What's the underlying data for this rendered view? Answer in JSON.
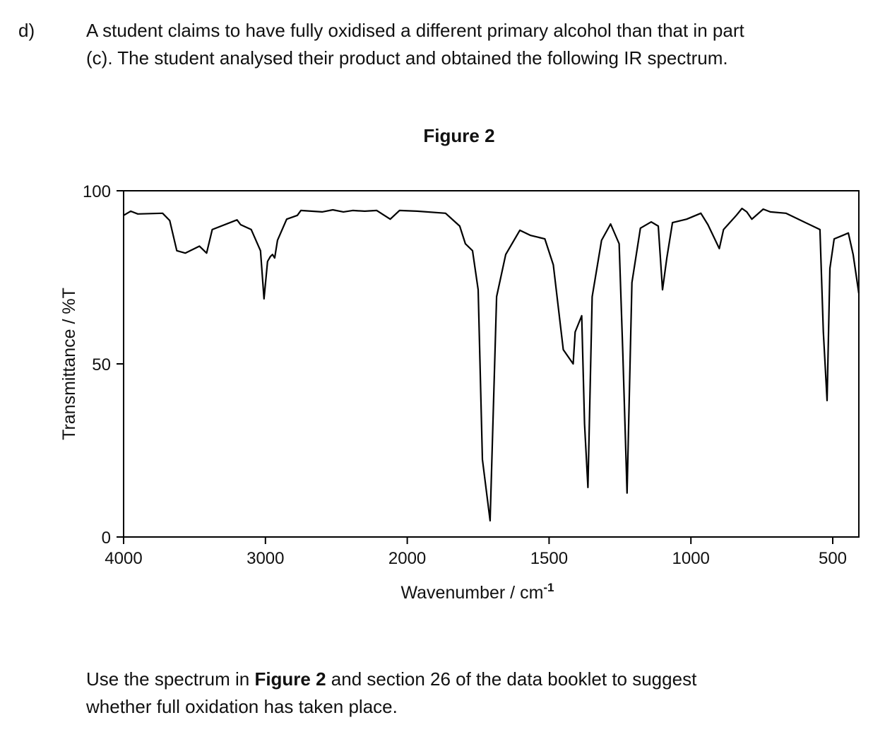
{
  "question": {
    "number": "d)",
    "lines": [
      "A student claims to have fully oxidised a different primary alcohol than that in part",
      "(c). The student analysed their product and obtained the following IR spectrum."
    ],
    "prompt_parts": [
      "Use the spectrum in ",
      "Figure 2",
      " and section 26 of the data booklet to suggest"
    ],
    "prompt_line2": "whether full oxidation has taken place."
  },
  "chart_data": {
    "type": "line",
    "title": "Figure 2",
    "x_label": "Wavenumber / cm",
    "x_label_superscript": "-1",
    "y_label": "Transmittance / %T",
    "xlim": [
      4000,
      408
    ],
    "xticks": [
      4000,
      3000,
      2000,
      1500,
      1000,
      500
    ],
    "x_scale": "equal-tick-spacing",
    "ylim": [
      0,
      100
    ],
    "yticks": [
      0,
      50,
      100
    ],
    "color": "#000000",
    "x": [
      4000,
      3950,
      3900,
      3725,
      3675,
      3625,
      3565,
      3465,
      3415,
      3375,
      3200,
      3175,
      3100,
      3035,
      3010,
      2985,
      2965,
      2950,
      2935,
      2915,
      2850,
      2775,
      2750,
      2600,
      2525,
      2450,
      2385,
      2300,
      2215,
      2120,
      2055,
      1965,
      1865,
      1815,
      1795,
      1770,
      1750,
      1735,
      1708,
      1685,
      1653,
      1603,
      1565,
      1515,
      1485,
      1450,
      1415,
      1408,
      1385,
      1375,
      1363,
      1348,
      1315,
      1283,
      1253,
      1240,
      1225,
      1208,
      1178,
      1140,
      1115,
      1100,
      1085,
      1065,
      1015,
      965,
      940,
      900,
      885,
      840,
      820,
      803,
      785,
      745,
      720,
      665,
      545,
      533,
      520,
      510,
      495,
      465,
      445,
      428,
      408
    ],
    "values": [
      92.9,
      94.1,
      93.3,
      93.5,
      91.4,
      82.7,
      82,
      84,
      82,
      88.8,
      91.6,
      90.2,
      88.8,
      82.7,
      68.8,
      79.6,
      81,
      81.6,
      80.6,
      85.7,
      91.8,
      92.9,
      94.3,
      93.9,
      94.5,
      93.9,
      94.3,
      94.1,
      94.3,
      91.8,
      94.3,
      94.1,
      93.5,
      89.8,
      84.7,
      82.7,
      71.4,
      22.4,
      4.7,
      69.4,
      81.6,
      88.6,
      87.1,
      86.1,
      78.6,
      54.1,
      50,
      59.2,
      63.9,
      32.7,
      14.3,
      69.4,
      85.7,
      90.4,
      84.7,
      53.1,
      12.7,
      73.5,
      89.2,
      91,
      89.8,
      71.4,
      80.6,
      90.8,
      91.8,
      93.5,
      90.2,
      83.3,
      88.8,
      92.9,
      94.9,
      93.9,
      91.8,
      94.7,
      93.9,
      93.5,
      88.8,
      59.2,
      39.4,
      77.6,
      86.1,
      87.1,
      87.8,
      81.6,
      70.4
    ]
  }
}
